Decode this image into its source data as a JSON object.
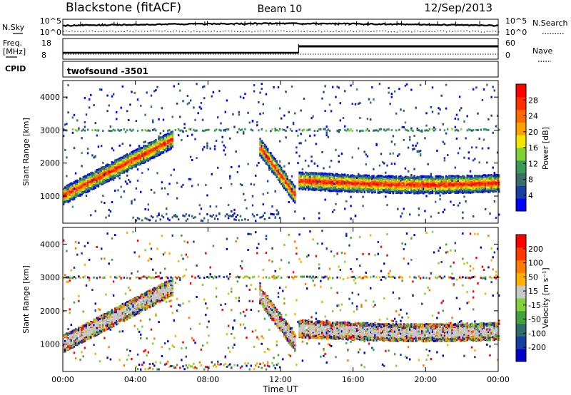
{
  "header": {
    "station": "Blackstone (fitACF)",
    "beam": "Beam 10",
    "date": "12/Sep/2013"
  },
  "noise_panel": {
    "left_label": "N.Sky",
    "left_ticks": [
      "10^5",
      "10^0"
    ],
    "right_label": "N.Search",
    "right_ticks": [
      "10^5",
      "10^0"
    ]
  },
  "freq_panel": {
    "left_label_top": "Freq.",
    "left_label_bottom": "[MHz]",
    "left_ticks": [
      "18",
      "8"
    ],
    "right_label": "Nave",
    "right_ticks": [
      "60",
      "0"
    ]
  },
  "cpid": {
    "label": "CPID",
    "value": "twofsound -3501"
  },
  "colors": {
    "power_scale": [
      "#0000ff",
      "#1b3fa0",
      "#3a6e6a",
      "#3b9a55",
      "#7fd13a",
      "#f2e600",
      "#ffa000",
      "#ff6a00",
      "#ff3000",
      "#ff0000"
    ],
    "velocity_scale": [
      "#0000cc",
      "#1640a0",
      "#2f6d6d",
      "#45a040",
      "#82d13a",
      "#c8c8c8",
      "#ffb000",
      "#ff7a00",
      "#ff3a00",
      "#ff0000"
    ]
  },
  "chart_data": [
    {
      "type": "heatmap",
      "panel": "power",
      "ylabel": "Slant Range [km]",
      "ylim": [
        180,
        4500
      ],
      "yticks": [
        "1000",
        "2000",
        "3000",
        "4000"
      ],
      "xlim": [
        0,
        24
      ],
      "colorbar": {
        "label": "Power [dB]",
        "range": [
          0,
          32
        ],
        "ticks": [
          "4",
          "8",
          "12",
          "16",
          "20",
          "24",
          "28"
        ]
      },
      "features": [
        {
          "name": "main echo band",
          "start_hour": 0,
          "end_hour": 6,
          "range_start_km": 1000,
          "range_end_km": 2700
        },
        {
          "name": "return echo band",
          "start_hour": 10.8,
          "end_hour": 12.8,
          "range_start_km": 2500,
          "range_end_km": 1000
        },
        {
          "name": "daytime echo band",
          "start_hour": 13,
          "end_hour": 24,
          "range_km": 1400
        }
      ]
    },
    {
      "type": "heatmap",
      "panel": "velocity",
      "ylabel": "Slant Range [km]",
      "xlabel": "Time UT",
      "ylim": [
        180,
        4500
      ],
      "yticks": [
        "1000",
        "2000",
        "3000",
        "4000"
      ],
      "xlim": [
        0,
        24
      ],
      "xticks": [
        "00:00",
        "04:00",
        "08:00",
        "12:00",
        "16:00",
        "20:00",
        "00:00"
      ],
      "colorbar": {
        "label": "Velocity [m s⁻¹]",
        "range": [
          -250,
          250
        ],
        "ticks": [
          "200",
          "100",
          "50",
          "15",
          "-15",
          "-50",
          "-100",
          "-200"
        ]
      }
    }
  ]
}
